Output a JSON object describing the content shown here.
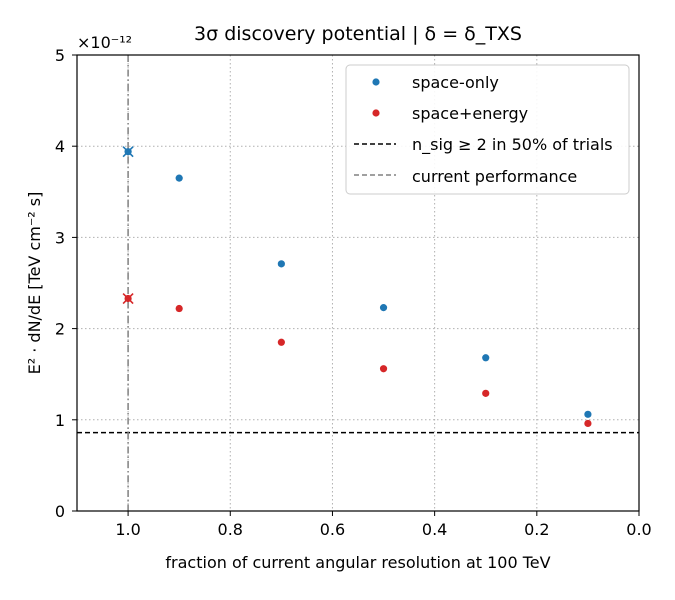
{
  "chart_data": {
    "type": "scatter",
    "title": "3σ discovery potential | δ = δ_TXS",
    "xlabel": "fraction of current angular resolution at 100 TeV",
    "ylabel": "E² · dN/dE [TeV cm⁻² s]",
    "y_multiplier": "×10⁻¹²",
    "xlim": [
      1.1,
      0.0
    ],
    "ylim": [
      0,
      5
    ],
    "x_reversed": true,
    "grid": true,
    "legend_position": "top-right",
    "x_ticks": [
      "1.0",
      "0.8",
      "0.6",
      "0.4",
      "0.2",
      "0.0"
    ],
    "x_tick_values": [
      1.0,
      0.8,
      0.6,
      0.4,
      0.2,
      0.0
    ],
    "y_ticks": [
      "0",
      "1",
      "2",
      "3",
      "4",
      "5"
    ],
    "y_tick_values": [
      0,
      1,
      2,
      3,
      4,
      5
    ],
    "series": [
      {
        "name": "space-only",
        "color": "#1f77b4",
        "x": [
          0.9,
          0.7,
          0.5,
          0.3,
          0.1
        ],
        "y": [
          3.65,
          2.71,
          2.23,
          1.68,
          1.06
        ],
        "current_marker": {
          "x": 1.0,
          "y": 3.94
        }
      },
      {
        "name": "space+energy",
        "color": "#d62728",
        "x": [
          0.9,
          0.7,
          0.5,
          0.3,
          0.1
        ],
        "y": [
          2.22,
          1.85,
          1.56,
          1.29,
          0.96
        ],
        "current_marker": {
          "x": 1.0,
          "y": 2.33
        }
      }
    ],
    "reference_lines": [
      {
        "name": "n_sig ≥ 2 in 50% of trials",
        "orientation": "horizontal",
        "value": 0.86,
        "style": "dashed",
        "color": "#000000"
      },
      {
        "name": "current performance",
        "orientation": "vertical",
        "value": 1.0,
        "style": "dashdot",
        "color": "#808080"
      }
    ]
  }
}
